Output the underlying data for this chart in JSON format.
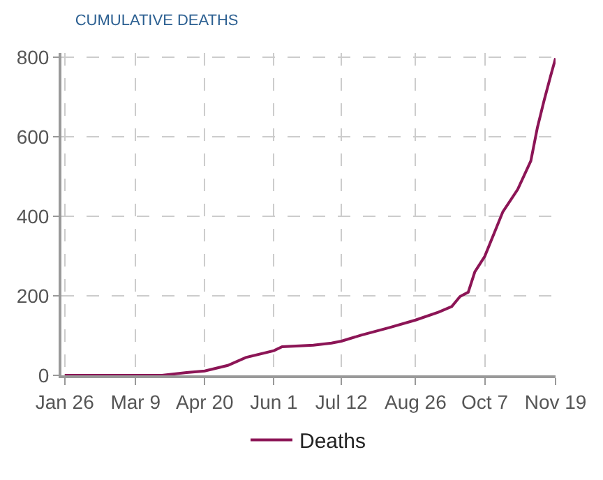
{
  "chart_data": {
    "type": "line",
    "title": "CUMULATIVE DEATHS",
    "x": [
      "--01-26",
      "--03-25",
      "--04-09",
      "--04-20",
      "--05-04",
      "--05-15",
      "--06-01",
      "--06-06",
      "--06-25",
      "--07-06",
      "--07-12",
      "--07-24",
      "--08-10",
      "--08-26",
      "--09-09",
      "--09-17",
      "--09-22",
      "--09-27",
      "--10-01",
      "--10-07",
      "--10-13",
      "--10-18",
      "--10-27",
      "--11-04",
      "--11-08",
      "--11-12",
      "--11-16",
      "--11-19"
    ],
    "series": [
      {
        "name": "Deaths",
        "color": "#8c1556",
        "values": [
          0,
          0,
          7,
          11,
          25,
          45,
          62,
          72,
          76,
          81,
          86,
          101,
          120,
          139,
          159,
          173,
          198,
          209,
          260,
          299,
          360,
          411,
          467,
          539,
          623,
          690,
          752,
          797
        ]
      }
    ],
    "xlim": [
      "--01-24",
      "--11-19"
    ],
    "xticks": [
      {
        "value": "--01-26",
        "label": "Jan 26"
      },
      {
        "value": "--03-09",
        "label": "Mar 9"
      },
      {
        "value": "--04-20",
        "label": "Apr 20"
      },
      {
        "value": "--06-01",
        "label": "Jun 1"
      },
      {
        "value": "--07-12",
        "label": "Jul 12"
      },
      {
        "value": "--08-26",
        "label": "Aug 26"
      },
      {
        "value": "--10-07",
        "label": "Oct 7"
      },
      {
        "value": "--11-19",
        "label": "Nov 19"
      }
    ],
    "ylim": [
      0,
      810
    ],
    "yticks": [
      0,
      200,
      400,
      600,
      800
    ],
    "grid": true,
    "legend": "bottom",
    "line_style": "solid"
  }
}
